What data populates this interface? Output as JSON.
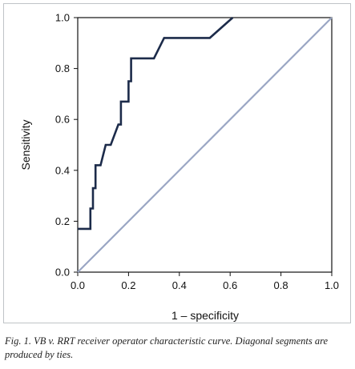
{
  "chart_data": {
    "type": "line",
    "xlabel": "1 – specificity",
    "ylabel": "Sensitivity",
    "xlim": [
      0,
      1
    ],
    "ylim": [
      0,
      1
    ],
    "x_ticks": [
      "0.0",
      "0.2",
      "0.4",
      "0.6",
      "0.8",
      "1.0"
    ],
    "y_ticks": [
      "0.0",
      "0.2",
      "0.4",
      "0.6",
      "0.8",
      "1.0"
    ],
    "grid": false,
    "legend": "none",
    "series": [
      {
        "role": "roc-curve",
        "color": "#1c2b4a",
        "x": [
          0.0,
          0.04,
          0.04,
          0.05,
          0.05,
          0.06,
          0.06,
          0.07,
          0.07,
          0.09,
          0.11,
          0.12,
          0.12,
          0.13,
          0.16,
          0.17,
          0.17,
          0.19,
          0.19,
          0.2,
          0.2,
          0.21,
          0.21,
          0.3,
          0.34,
          0.52,
          0.61
        ],
        "y": [
          0.17,
          0.17,
          0.17,
          0.17,
          0.25,
          0.25,
          0.33,
          0.33,
          0.42,
          0.42,
          0.5,
          0.5,
          0.5,
          0.5,
          0.58,
          0.58,
          0.67,
          0.67,
          0.67,
          0.67,
          0.75,
          0.75,
          0.84,
          0.84,
          0.92,
          0.92,
          1.0
        ]
      },
      {
        "role": "reference-diagonal",
        "color": "#9aa6c4",
        "x": [
          0,
          1
        ],
        "y": [
          0,
          1
        ]
      }
    ]
  },
  "caption": "Fig. 1. VB v. RRT receiver operator characteristic curve. Diagonal segments are produced by ties."
}
